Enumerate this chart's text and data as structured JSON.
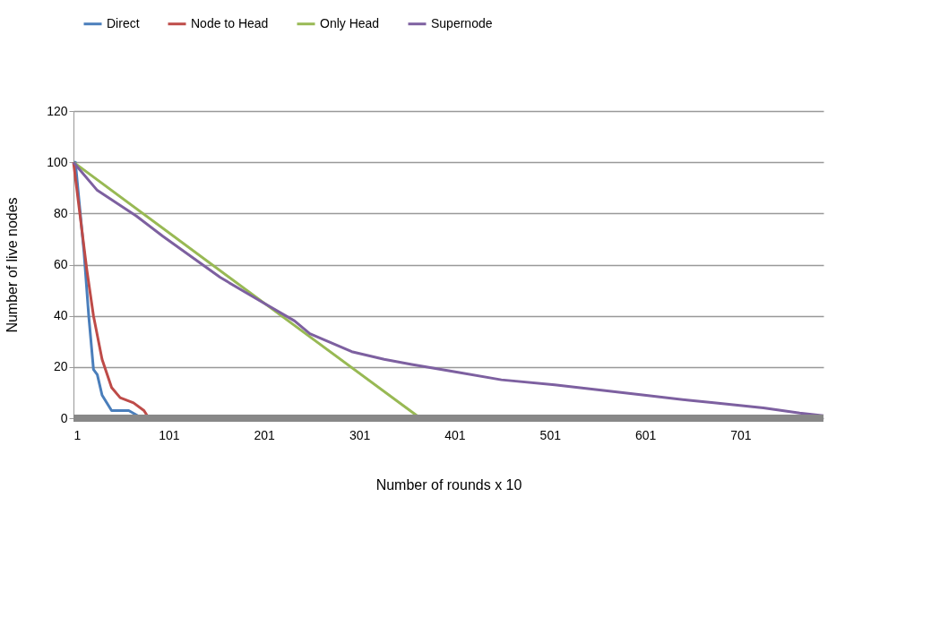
{
  "chart_data": {
    "type": "line",
    "xlabel": "Number of rounds x 10",
    "ylabel": "Number of live nodes",
    "xlim": [
      1,
      788
    ],
    "xticks": [
      1,
      101,
      201,
      301,
      401,
      501,
      601,
      701
    ],
    "ylim": [
      0,
      120
    ],
    "yticks": [
      0,
      20,
      40,
      60,
      80,
      100,
      120
    ],
    "grid": "y",
    "legend": "top",
    "marker": "none",
    "line_style": "solid",
    "series": [
      {
        "name": "Direct",
        "color": "#4a7ebb",
        "x": [
          1,
          3,
          12,
          17,
          22,
          26,
          31,
          41,
          59,
          73
        ],
        "values": [
          100,
          100,
          65,
          40,
          19,
          17,
          9,
          3,
          3,
          0
        ]
      },
      {
        "name": "Node to Head",
        "color": "#be4b48",
        "x": [
          1,
          8,
          15,
          22,
          31,
          41,
          50,
          64,
          75,
          80
        ],
        "values": [
          100,
          79,
          58,
          40,
          23,
          12,
          8,
          6,
          3,
          0
        ]
      },
      {
        "name": "Only Head",
        "color": "#98b954",
        "x": [
          1,
          201,
          365
        ],
        "values": [
          100,
          45,
          0
        ]
      },
      {
        "name": "Supernode",
        "color": "#7d60a0",
        "x": [
          1,
          26,
          67,
          95,
          155,
          196,
          233,
          249,
          293,
          327,
          356,
          403,
          450,
          506,
          553,
          600,
          647,
          673,
          725,
          763,
          788
        ],
        "values": [
          100,
          89,
          79,
          71,
          55,
          46,
          38,
          33,
          26,
          23,
          21,
          18,
          15,
          13,
          11,
          9,
          7,
          6,
          4,
          2,
          1
        ]
      }
    ]
  }
}
